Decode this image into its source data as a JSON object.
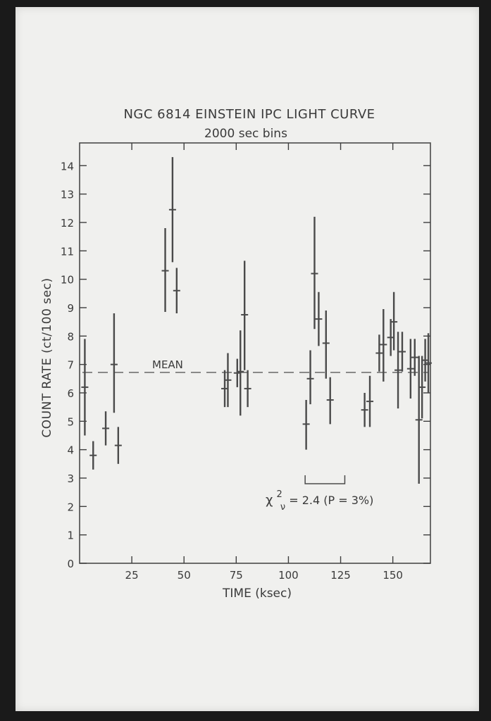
{
  "chart_data": {
    "type": "scatter",
    "title": "NGC 6814 EINSTEIN IPC LIGHT CURVE",
    "subtitle": "2000 sec bins",
    "xlabel": "TIME (ksec)",
    "ylabel": "COUNT RATE (ct/100 sec)",
    "xlim": [
      0,
      168
    ],
    "ylim": [
      0,
      14.8
    ],
    "xticks": [
      25,
      50,
      75,
      100,
      125,
      150
    ],
    "yticks": [
      0,
      1,
      2,
      3,
      4,
      5,
      6,
      7,
      8,
      9,
      10,
      11,
      12,
      13,
      14
    ],
    "grid": false,
    "mean": {
      "label": "MEAN",
      "value": 6.72
    },
    "annotation": {
      "text_prefix": "χ",
      "sub": "ν",
      "sup": "2",
      "text_rest": " = 2.4 (P = 3%)"
    },
    "points": [
      {
        "x": 2.5,
        "y": 6.2,
        "ylo": 4.5,
        "yhi": 7.9
      },
      {
        "x": 6.5,
        "y": 3.8,
        "ylo": 3.3,
        "yhi": 4.3
      },
      {
        "x": 12.5,
        "y": 4.75,
        "ylo": 4.15,
        "yhi": 5.35
      },
      {
        "x": 16.5,
        "y": 7.0,
        "ylo": 5.3,
        "yhi": 8.8
      },
      {
        "x": 18.5,
        "y": 4.15,
        "ylo": 3.5,
        "yhi": 4.8
      },
      {
        "x": 41.0,
        "y": 10.3,
        "ylo": 8.85,
        "yhi": 11.8
      },
      {
        "x": 44.5,
        "y": 12.45,
        "ylo": 10.6,
        "yhi": 14.3
      },
      {
        "x": 46.5,
        "y": 9.6,
        "ylo": 8.8,
        "yhi": 10.4
      },
      {
        "x": 69.5,
        "y": 6.15,
        "ylo": 5.5,
        "yhi": 6.8
      },
      {
        "x": 71.0,
        "y": 6.45,
        "ylo": 5.5,
        "yhi": 7.4
      },
      {
        "x": 75.5,
        "y": 6.7,
        "ylo": 6.2,
        "yhi": 7.2
      },
      {
        "x": 77.0,
        "y": 6.75,
        "ylo": 5.2,
        "yhi": 8.2
      },
      {
        "x": 79.0,
        "y": 8.75,
        "ylo": 6.8,
        "yhi": 10.65
      },
      {
        "x": 80.5,
        "y": 6.15,
        "ylo": 5.5,
        "yhi": 6.8
      },
      {
        "x": 108.5,
        "y": 4.9,
        "ylo": 4.0,
        "yhi": 5.75
      },
      {
        "x": 110.5,
        "y": 6.5,
        "ylo": 5.6,
        "yhi": 7.5
      },
      {
        "x": 112.5,
        "y": 10.2,
        "ylo": 8.25,
        "yhi": 12.2
      },
      {
        "x": 114.5,
        "y": 8.6,
        "ylo": 7.65,
        "yhi": 9.55
      },
      {
        "x": 118.0,
        "y": 7.75,
        "ylo": 6.5,
        "yhi": 8.9
      },
      {
        "x": 120.0,
        "y": 5.75,
        "ylo": 4.9,
        "yhi": 6.55
      },
      {
        "x": 136.5,
        "y": 5.4,
        "ylo": 4.8,
        "yhi": 6.0
      },
      {
        "x": 139.0,
        "y": 5.7,
        "ylo": 4.8,
        "yhi": 6.6
      },
      {
        "x": 143.5,
        "y": 7.4,
        "ylo": 6.75,
        "yhi": 8.05
      },
      {
        "x": 145.5,
        "y": 7.7,
        "ylo": 6.4,
        "yhi": 8.95
      },
      {
        "x": 149.0,
        "y": 7.95,
        "ylo": 7.3,
        "yhi": 8.6
      },
      {
        "x": 150.5,
        "y": 8.5,
        "ylo": 7.5,
        "yhi": 9.55
      },
      {
        "x": 152.5,
        "y": 6.8,
        "ylo": 5.45,
        "yhi": 8.15
      },
      {
        "x": 154.5,
        "y": 7.45,
        "ylo": 6.75,
        "yhi": 8.15
      },
      {
        "x": 158.5,
        "y": 6.85,
        "ylo": 5.8,
        "yhi": 7.9
      },
      {
        "x": 160.5,
        "y": 7.25,
        "ylo": 6.6,
        "yhi": 7.9
      },
      {
        "x": 162.5,
        "y": 5.05,
        "ylo": 2.8,
        "yhi": 7.3
      },
      {
        "x": 164.0,
        "y": 6.2,
        "ylo": 5.1,
        "yhi": 7.3
      },
      {
        "x": 165.5,
        "y": 7.15,
        "ylo": 6.4,
        "yhi": 7.9
      },
      {
        "x": 167.0,
        "y": 7.05,
        "ylo": 6.0,
        "yhi": 8.1
      }
    ]
  }
}
